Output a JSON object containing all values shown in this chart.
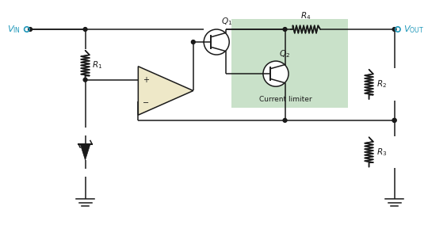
{
  "background_color": "#ffffff",
  "vin_label": "$V_{\\mathrm{IN}}$",
  "vout_label": "$V_{\\mathrm{OUT}}$",
  "r1_label": "$R_1$",
  "r2_label": "$R_2$",
  "r3_label": "$R_3$",
  "r4_label": "$R_4$",
  "q1_label": "$Q_1$",
  "q2_label": "$Q_2$",
  "current_limiter_label": "Current limiter",
  "opamp_fill": "#eee8c8",
  "current_limiter_fill": "#b8d8b8",
  "wire_color": "#1a1a1a",
  "label_color": "#2299bb"
}
